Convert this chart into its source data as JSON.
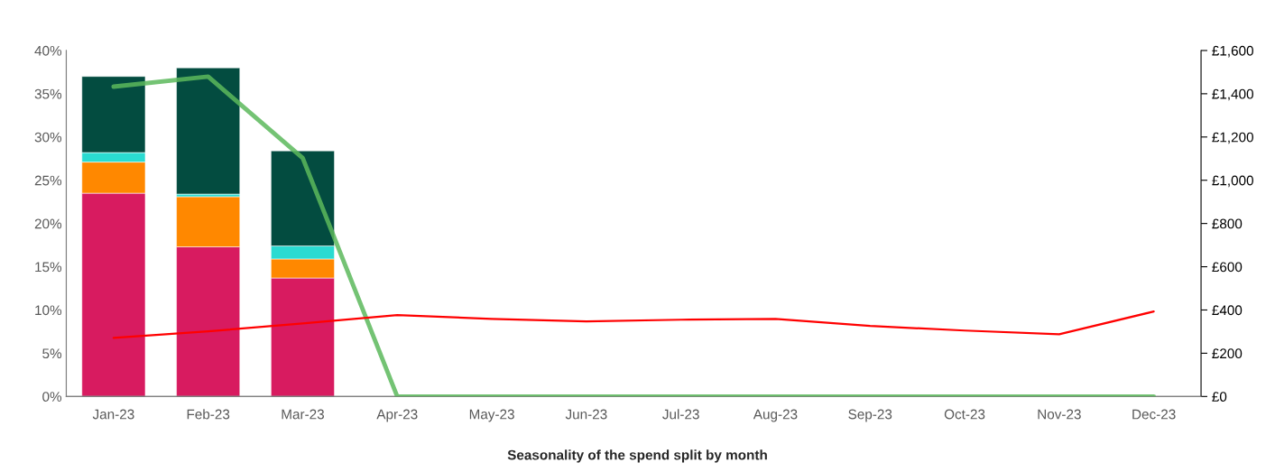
{
  "chart_data": {
    "type": "bar",
    "stacked": true,
    "xlabel": "Seasonality of the spend split by month",
    "categories": [
      "Jan-23",
      "Feb-23",
      "Mar-23",
      "Apr-23",
      "May-23",
      "Jun-23",
      "Jul-23",
      "Aug-23",
      "Sep-23",
      "Oct-23",
      "Nov-23",
      "Dec-23"
    ],
    "series": [
      {
        "color": "#d81b60",
        "values": [
          23.5,
          17.3,
          13.7,
          null,
          null,
          null,
          null,
          null,
          null,
          null,
          null,
          null
        ]
      },
      {
        "color": "#ff8800",
        "values": [
          3.6,
          5.8,
          2.2,
          null,
          null,
          null,
          null,
          null,
          null,
          null,
          null,
          null
        ]
      },
      {
        "color": "#2adbd1",
        "values": [
          1.1,
          0.3,
          1.5,
          null,
          null,
          null,
          null,
          null,
          null,
          null,
          null,
          null
        ]
      },
      {
        "color": "#034c40",
        "values": [
          8.8,
          14.6,
          11.0,
          null,
          null,
          null,
          null,
          null,
          null,
          null,
          null,
          null
        ]
      },
      {
        "type": "line",
        "axis": "y2",
        "color": "#5cb85c",
        "values": [
          1433,
          1479,
          1103,
          0,
          0,
          0,
          0,
          0,
          0,
          0,
          0,
          0
        ]
      },
      {
        "type": "line",
        "axis": "y2",
        "color": "#ff0000",
        "values": [
          271,
          301,
          338,
          376,
          359,
          347,
          355,
          359,
          326,
          305,
          288,
          393
        ]
      }
    ],
    "ylim": [
      0,
      40
    ],
    "yticks": [
      {
        "value": 0,
        "label": "0%"
      },
      {
        "value": 5,
        "label": "5%"
      },
      {
        "value": 10,
        "label": "10%"
      },
      {
        "value": 15,
        "label": "15%"
      },
      {
        "value": 20,
        "label": "20%"
      },
      {
        "value": 25,
        "label": "25%"
      },
      {
        "value": 30,
        "label": "30%"
      },
      {
        "value": 35,
        "label": "35%"
      },
      {
        "value": 40,
        "label": "40%"
      }
    ],
    "y2lim": [
      0,
      1600
    ],
    "y2ticks": [
      {
        "value": 0,
        "label": "£0"
      },
      {
        "value": 200,
        "label": "£200"
      },
      {
        "value": 400,
        "label": "£400"
      },
      {
        "value": 600,
        "label": "£600"
      },
      {
        "value": 800,
        "label": "£800"
      },
      {
        "value": 1000,
        "label": "£1,000"
      },
      {
        "value": 1200,
        "label": "£1,200"
      },
      {
        "value": 1400,
        "label": "£1,400"
      },
      {
        "value": 1600,
        "label": "£1,600"
      }
    ],
    "grid": false
  }
}
